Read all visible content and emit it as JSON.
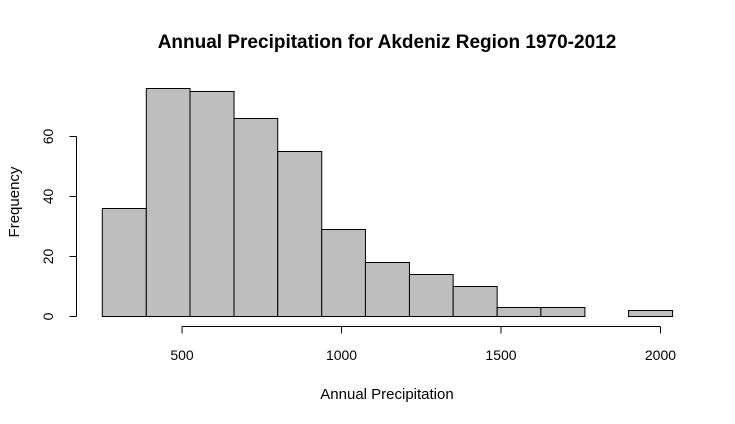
{
  "chart_data": {
    "type": "bar",
    "title": "Annual Precipitation for Akdeniz Region 1970-2012",
    "xlabel": "Annual Precipitation",
    "ylabel": "Frequency",
    "bin_edges": [
      250,
      388,
      525,
      663,
      800,
      938,
      1075,
      1213,
      1350,
      1488,
      1625,
      1763,
      1900,
      2038
    ],
    "values": [
      36,
      76,
      75,
      66,
      55,
      29,
      18,
      14,
      10,
      3,
      3,
      0,
      2
    ],
    "xlim": [
      250,
      2050
    ],
    "ylim": [
      0,
      78
    ],
    "x_ticks": [
      500,
      1000,
      1500,
      2000
    ],
    "y_ticks": [
      0,
      20,
      40,
      60
    ],
    "bar_color": "#bebebe",
    "grid": false
  }
}
